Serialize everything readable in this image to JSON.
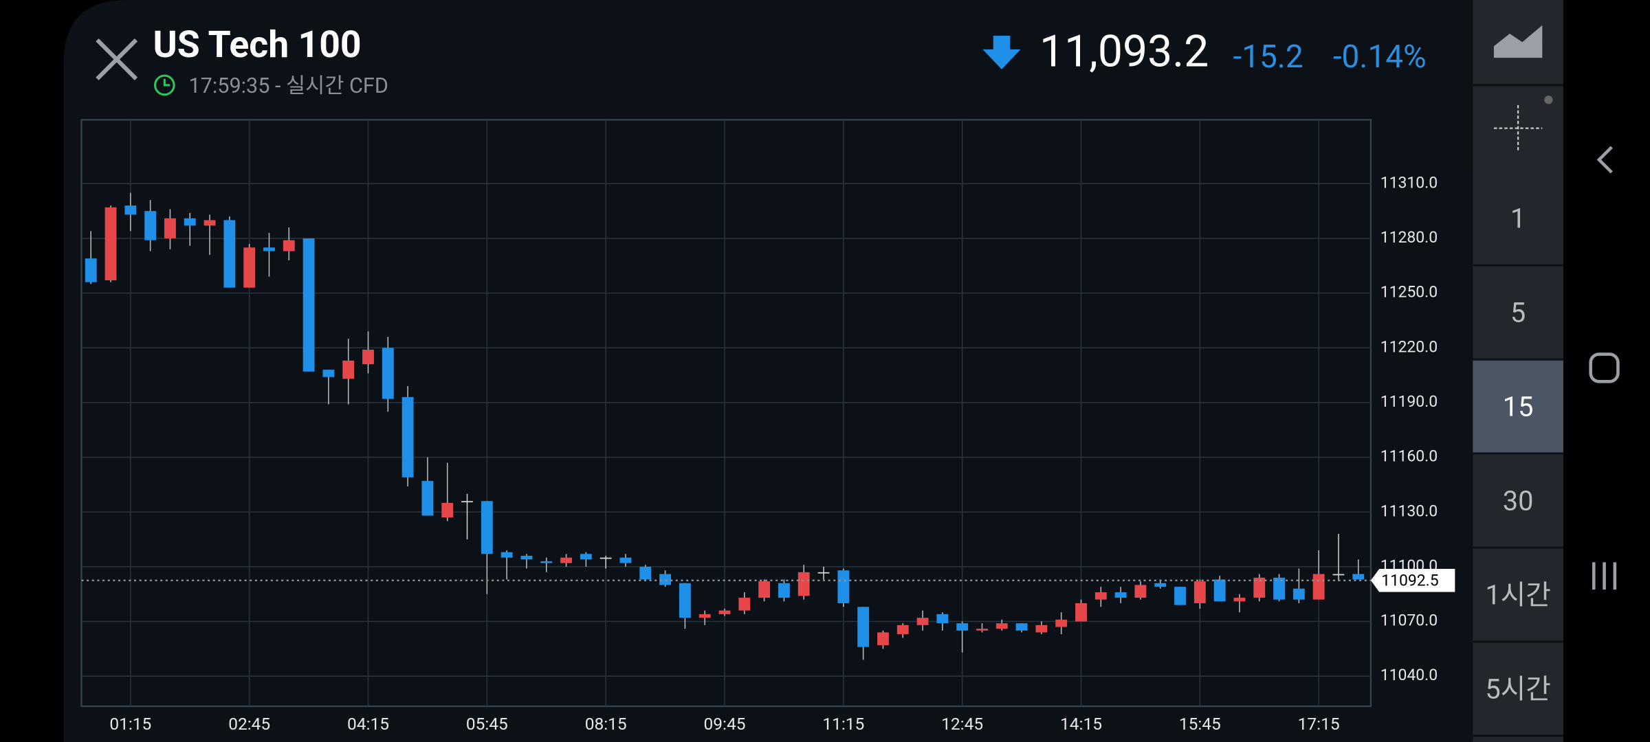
{
  "header": {
    "title": "US Tech 100",
    "time": "17:59:35",
    "subtitle": " - 실시간 CFD",
    "price": "11,093.2",
    "change": "-15.2",
    "change_percent": "-0.14%"
  },
  "chart_data": {
    "type": "candlestick",
    "categories": [
      null,
      null,
      "01:15",
      null,
      null,
      null,
      null,
      null,
      "02:45",
      null,
      null,
      null,
      null,
      null,
      "04:15",
      null,
      null,
      null,
      null,
      null,
      "05:45",
      null,
      null,
      null,
      null,
      null,
      "08:15",
      null,
      null,
      null,
      null,
      null,
      "09:45",
      null,
      null,
      null,
      null,
      null,
      "11:15",
      null,
      null,
      null,
      null,
      null,
      "12:45",
      null,
      null,
      null,
      null,
      null,
      "14:15",
      null,
      null,
      null,
      null,
      null,
      "15:45",
      null,
      null,
      null,
      null,
      null,
      "17:15",
      null,
      null
    ],
    "open": [
      11269,
      11257,
      11298,
      11295,
      11280,
      11291,
      11287,
      11290,
      11253,
      11275,
      11273,
      11280,
      11208,
      11203,
      11211,
      11220,
      11193,
      11147,
      11127,
      11136,
      11136,
      11108,
      11106,
      11103,
      11102,
      11107,
      11105,
      11105,
      11100,
      11096,
      11091,
      11072,
      11074,
      11076,
      11083,
      11091,
      11084,
      11097,
      11098,
      11078,
      11057,
      11063,
      11068,
      11074,
      11069,
      11065,
      11066,
      11069,
      11064,
      11067,
      11070,
      11082,
      11086,
      11083,
      11091,
      11089,
      11080,
      11093,
      11081,
      11083,
      11094,
      11088,
      11082,
      11096,
      11096
    ],
    "high": [
      11284,
      11298,
      11305,
      11301,
      11296,
      11294,
      11293,
      11292,
      11277,
      11283,
      11286,
      11280,
      11208,
      11225,
      11229,
      11226,
      11199,
      11160,
      11157,
      11140,
      11136,
      11109,
      11107,
      11105,
      11107,
      11108,
      11106,
      11107,
      11101,
      11098,
      11091,
      11076,
      11077,
      11086,
      11093,
      11093,
      11101,
      11100,
      11099,
      11078,
      11065,
      11069,
      11076,
      11075,
      11070,
      11069,
      11071,
      11069,
      11070,
      11075,
      11082,
      11089,
      11089,
      11092,
      11093,
      11089,
      11093,
      11095,
      11085,
      11096,
      11096,
      11099,
      11109,
      11118,
      11104
    ],
    "low": [
      11255,
      11256,
      11284,
      11273,
      11274,
      11276,
      11271,
      11253,
      11253,
      11259,
      11268,
      11207,
      11189,
      11189,
      11206,
      11185,
      11144,
      11128,
      11125,
      11115,
      11085,
      11093,
      11099,
      11097,
      11100,
      11100,
      11099,
      11100,
      11092,
      11089,
      11066,
      11068,
      11073,
      11074,
      11081,
      11081,
      11082,
      11093,
      11078,
      11049,
      11055,
      11061,
      11065,
      11065,
      11053,
      11064,
      11065,
      11064,
      11063,
      11063,
      11070,
      11078,
      11080,
      11082,
      11088,
      11079,
      11077,
      11081,
      11075,
      11081,
      11081,
      11080,
      11082,
      11092,
      11093
    ],
    "close": [
      11256,
      11297,
      11293,
      11279,
      11291,
      11287,
      11290,
      11253,
      11275,
      11273,
      11279,
      11207,
      11204,
      11213,
      11219,
      11192,
      11149,
      11128,
      11135,
      11136,
      11107,
      11105,
      11104,
      11102,
      11105,
      11104,
      11105,
      11102,
      11093,
      11090,
      11072,
      11074,
      11076,
      11083,
      11092,
      11083,
      11097,
      11097,
      11080,
      11056,
      11064,
      11068,
      11072,
      11069,
      11065,
      11066,
      11069,
      11065,
      11068,
      11071,
      11080,
      11086,
      11083,
      11090,
      11089,
      11079,
      11092,
      11081,
      11083,
      11094,
      11082,
      11082,
      11096,
      11096,
      11093
    ],
    "up_color": "#e5474b",
    "down_color": "#1f8fe8",
    "flat_color": "#d0d0d0",
    "last_price": 11092.5,
    "ylim": [
      11023.5,
      11345
    ],
    "yticks": [
      {
        "value": 11040,
        "label": "11040.0"
      },
      {
        "value": 11070,
        "label": "11070.0"
      },
      {
        "value": 11100,
        "label": "11100.0"
      },
      {
        "value": 11130,
        "label": "11130.0"
      },
      {
        "value": 11160,
        "label": "11160.0"
      },
      {
        "value": 11190,
        "label": "11190.0"
      },
      {
        "value": 11220,
        "label": "11220.0"
      },
      {
        "value": 11250,
        "label": "11250.0"
      },
      {
        "value": 11280,
        "label": "11280.0"
      },
      {
        "value": 11310,
        "label": "11310.0"
      }
    ],
    "grid": true
  },
  "sidebar": {
    "intervals": [
      "1",
      "5",
      "15",
      "30",
      "1시간",
      "5시간"
    ],
    "selected": "15"
  }
}
